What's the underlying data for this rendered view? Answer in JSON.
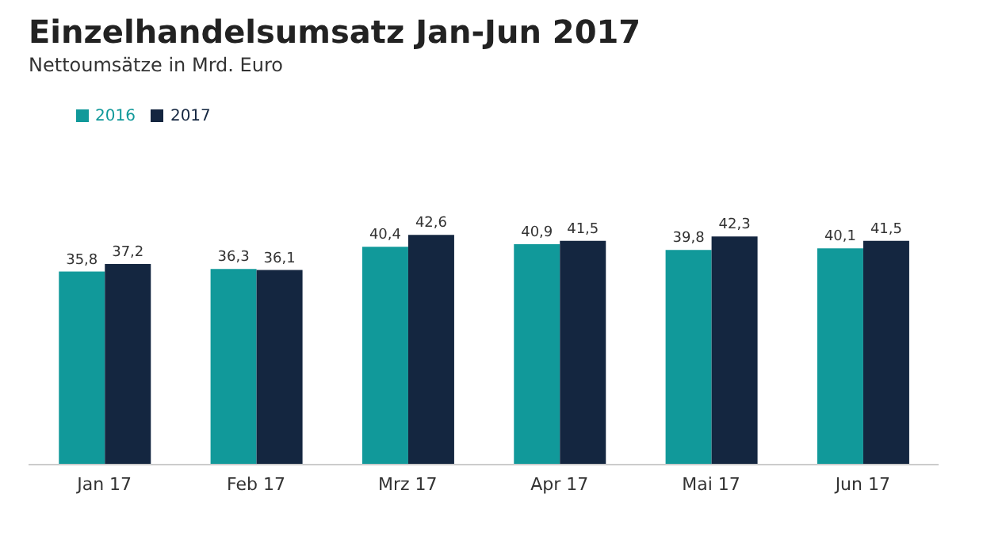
{
  "chart_data": {
    "type": "bar",
    "title": "Einzelhandelsumsatz Jan-Jun 2017",
    "subtitle": "Nettoumsätze in Mrd. Euro",
    "categories": [
      "Jan 17",
      "Feb 17",
      "Mrz 17",
      "Apr 17",
      "Mai 17",
      "Jun 17"
    ],
    "series": [
      {
        "name": "2016",
        "color": "#11999a",
        "values": [
          35.8,
          36.3,
          40.4,
          40.9,
          39.8,
          40.1
        ],
        "value_labels": [
          "35,8",
          "36,3",
          "40,4",
          "40,9",
          "39,8",
          "40,1"
        ]
      },
      {
        "name": "2017",
        "color": "#142640",
        "values": [
          37.2,
          36.1,
          42.6,
          41.5,
          42.3,
          41.5
        ],
        "value_labels": [
          "37,2",
          "36,1",
          "42,6",
          "41,5",
          "42,3",
          "41,5"
        ]
      }
    ],
    "tick_labels": "x",
    "legend": "top left",
    "grid": false
  }
}
